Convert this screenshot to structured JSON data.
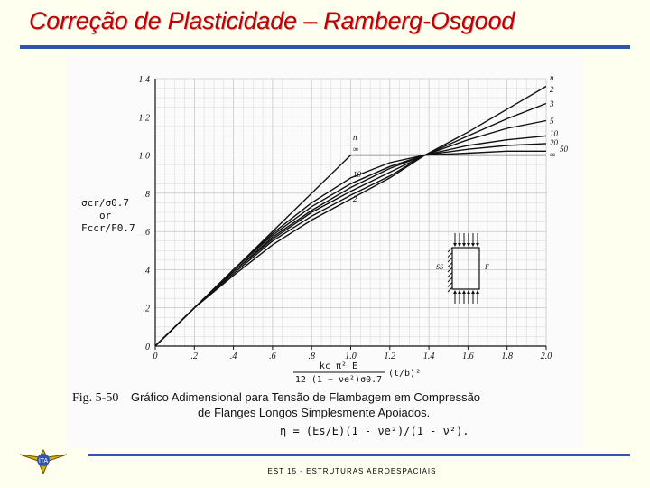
{
  "slide": {
    "title": "Correção de Plasticidade – Ramberg-Osgood",
    "caption_label": "Fig. 5-50",
    "caption_line1": "Gráfico Adimensional para Tensão de Flambagem em Compressão",
    "caption_line2": "de Flanges Longos Simplesmente Apoiados.",
    "eta_formula": "η = (Es/E)(1 - νe²)/(1 - ν²).",
    "footer": "EST 15  -  ESTRUTURAS AEROESPACIAIS"
  },
  "colors": {
    "title": "#c00000",
    "rule": "#2f55b0",
    "curves": "#111111"
  },
  "chart_data": {
    "type": "line",
    "ylabel_lines": [
      "σcr/σ0.7",
      "or",
      "Fccr/F0.7"
    ],
    "xlabel_numerator": "kc π² E",
    "xlabel_denominator": "12 (1 − νe²)σ0.7",
    "xlabel_ratio": "(t/b)²",
    "xlim": [
      0,
      2.0
    ],
    "ylim": [
      0,
      1.4
    ],
    "x_ticks": [
      "0",
      ".2",
      ".4",
      ".6",
      ".8",
      "1.0",
      "1.2",
      "1.4",
      "1.6",
      "1.8",
      "2.0"
    ],
    "y_ticks": [
      "0",
      ".2",
      ".4",
      ".6",
      ".8",
      "1.0",
      "1.2",
      "1.4"
    ],
    "grid": true,
    "series": [
      {
        "name": "∞",
        "x": [
          0,
          1.0,
          2.0
        ],
        "y": [
          0,
          1.0,
          1.0
        ]
      },
      {
        "name": "50",
        "x": [
          0,
          0.2,
          0.4,
          0.6,
          0.8,
          1.0,
          1.2,
          1.38,
          1.6,
          1.8,
          2.0
        ],
        "y": [
          0,
          0.2,
          0.4,
          0.59,
          0.75,
          0.88,
          0.96,
          1.0,
          1.01,
          1.02,
          1.02
        ]
      },
      {
        "name": "20",
        "x": [
          0,
          0.2,
          0.4,
          0.6,
          0.8,
          1.0,
          1.2,
          1.38,
          1.6,
          1.8,
          2.0
        ],
        "y": [
          0,
          0.2,
          0.4,
          0.58,
          0.73,
          0.85,
          0.94,
          1.0,
          1.03,
          1.05,
          1.06
        ]
      },
      {
        "name": "10",
        "x": [
          0,
          0.2,
          0.4,
          0.6,
          0.8,
          1.0,
          1.2,
          1.38,
          1.6,
          1.8,
          2.0
        ],
        "y": [
          0,
          0.2,
          0.39,
          0.57,
          0.71,
          0.83,
          0.93,
          1.0,
          1.05,
          1.08,
          1.1
        ]
      },
      {
        "name": "5",
        "x": [
          0,
          0.2,
          0.4,
          0.6,
          0.8,
          1.0,
          1.2,
          1.38,
          1.6,
          1.8,
          2.0
        ],
        "y": [
          0,
          0.2,
          0.39,
          0.56,
          0.7,
          0.81,
          0.91,
          1.0,
          1.08,
          1.14,
          1.18
        ]
      },
      {
        "name": "3",
        "x": [
          0,
          0.2,
          0.4,
          0.6,
          0.8,
          1.0,
          1.2,
          1.38,
          1.6,
          1.8,
          2.0
        ],
        "y": [
          0,
          0.2,
          0.38,
          0.55,
          0.68,
          0.79,
          0.89,
          1.0,
          1.1,
          1.19,
          1.27
        ]
      },
      {
        "name": "2",
        "x": [
          0,
          0.2,
          0.4,
          0.6,
          0.8,
          1.0,
          1.2,
          1.38,
          1.6,
          1.8,
          2.0
        ],
        "y": [
          0,
          0.2,
          0.37,
          0.53,
          0.66,
          0.77,
          0.88,
          1.0,
          1.12,
          1.24,
          1.36
        ]
      }
    ],
    "curve_labels_right": [
      "n",
      "2",
      "3",
      "5",
      "10",
      "20",
      "50",
      "∞"
    ],
    "curve_labels_mid": [
      "n",
      "∞",
      "10",
      "2"
    ],
    "inset": {
      "label_left": "SS",
      "label_right": "F"
    }
  }
}
